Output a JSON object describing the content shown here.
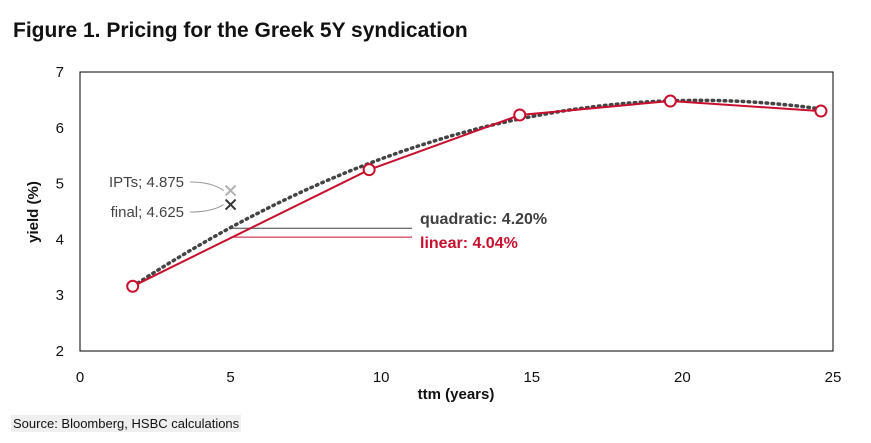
{
  "title": "Figure 1. Pricing for the Greek 5Y syndication",
  "source": "Source: Bloomberg, HSBC calculations",
  "chart_data": {
    "type": "line",
    "xlabel": "ttm (years)",
    "ylabel": "yield (%)",
    "xlim": [
      0,
      25
    ],
    "ylim": [
      2,
      7
    ],
    "xticks": [
      "0",
      "5",
      "10",
      "15",
      "20",
      "25"
    ],
    "yticks": [
      "2",
      "3",
      "4",
      "5",
      "6",
      "7"
    ],
    "grid": false,
    "series": [
      {
        "kind": "linear",
        "color": "#c8102e",
        "x": [
          1.75,
          9.6,
          14.6,
          19.6,
          24.6
        ],
        "y": [
          3.16,
          5.25,
          6.23,
          6.48,
          6.3
        ]
      },
      {
        "kind": "quadratic",
        "color": "#444444",
        "x": [
          1.75,
          9.6,
          14.6,
          19.6,
          24.6
        ],
        "y": [
          3.16,
          5.36,
          6.15,
          6.5,
          6.33
        ]
      }
    ],
    "points": [
      {
        "label": "IPTs; 4.875",
        "x": 5.0,
        "y": 4.875,
        "color": "#b0b0b0"
      },
      {
        "label": "final; 4.625",
        "x": 5.0,
        "y": 4.625,
        "color": "#333333"
      }
    ],
    "annotations": [
      {
        "label": "quadratic: 4.20%",
        "x": 5.0,
        "y": 4.2,
        "color": "#404040"
      },
      {
        "label": "linear: 4.04%",
        "x": 5.0,
        "y": 4.04,
        "color": "#c8102e"
      }
    ]
  }
}
